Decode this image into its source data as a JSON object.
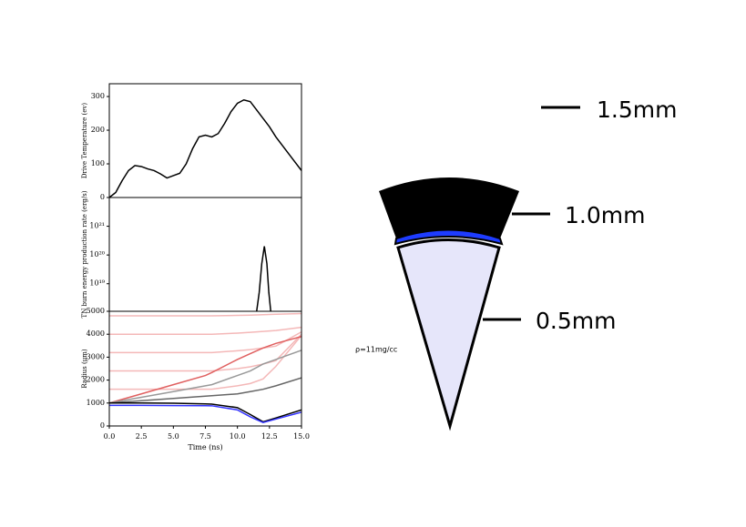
{
  "chart_data": [
    {
      "type": "line",
      "ylabel": "Drive Temperature (ev)",
      "xlim": [
        0,
        15
      ],
      "ylim": [
        0,
        338
      ],
      "yticks": [
        0,
        100,
        200,
        300
      ],
      "x": [
        0,
        0.5,
        1,
        1.5,
        2,
        2.5,
        3,
        3.5,
        4,
        4.5,
        5,
        5.5,
        6,
        6.5,
        7,
        7.5,
        8,
        8.5,
        9,
        9.5,
        10,
        10.5,
        11,
        11.5,
        12,
        12.5,
        13,
        13.5,
        14,
        14.5,
        15
      ],
      "series": [
        {
          "color": "#000000",
          "values": [
            0,
            15,
            50,
            80,
            95,
            92,
            85,
            80,
            70,
            58,
            65,
            72,
            100,
            145,
            180,
            185,
            180,
            190,
            220,
            255,
            280,
            290,
            285,
            260,
            235,
            210,
            180,
            155,
            130,
            105,
            80
          ]
        }
      ]
    },
    {
      "type": "line",
      "ylabel": "TN burn energy production rate (erg/s)",
      "log": true,
      "xlim": [
        0,
        15
      ],
      "ylim": [
        1.1e+18,
        1e+22
      ],
      "yticks": [
        {
          "value": 1e+19,
          "label": "10¹⁹"
        },
        {
          "value": 1e+20,
          "label": "10²⁰"
        },
        {
          "value": 1e+21,
          "label": "10²¹"
        }
      ],
      "x": [
        11.5,
        11.7,
        11.9,
        12.1,
        12.3,
        12.45,
        12.6
      ],
      "series": [
        {
          "color": "#000000",
          "values": [
            1.1e+18,
            5e+18,
            5e+19,
            2e+20,
            5e+19,
            5e+18,
            1.1e+18
          ]
        }
      ]
    },
    {
      "type": "line",
      "ylabel": "Radius (μm)",
      "xlabel": "Time (ns)",
      "xlim": [
        0,
        15
      ],
      "ylim": [
        0,
        5000
      ],
      "yticks": [
        0,
        1000,
        2000,
        3000,
        4000,
        5000
      ],
      "xticks": [
        {
          "value": 0,
          "label": "0.0"
        },
        {
          "value": 2.5,
          "label": "2.5"
        },
        {
          "value": 5,
          "label": "5.0"
        },
        {
          "value": 7.5,
          "label": "7.5"
        },
        {
          "value": 10,
          "label": "10.0"
        },
        {
          "value": 12.5,
          "label": "12.5"
        },
        {
          "value": 15,
          "label": "15.0"
        }
      ],
      "x": [
        0,
        2.5,
        5,
        7.5,
        8,
        10,
        11,
        12,
        13,
        15
      ],
      "series": [
        {
          "color": "#f4b8b8",
          "values": [
            4800,
            4800,
            4800,
            4800,
            4800,
            4820,
            4830,
            4850,
            4870,
            4900
          ]
        },
        {
          "color": "#f4b8b8",
          "values": [
            4000,
            4000,
            4000,
            4000,
            4000,
            4050,
            4080,
            4120,
            4160,
            4300
          ]
        },
        {
          "color": "#f4b8b8",
          "values": [
            3200,
            3200,
            3200,
            3200,
            3200,
            3280,
            3330,
            3400,
            3480,
            4100
          ]
        },
        {
          "color": "#f4b8b8",
          "values": [
            2400,
            2400,
            2400,
            2400,
            2400,
            2500,
            2580,
            2700,
            2850,
            4000
          ]
        },
        {
          "color": "#f4b8b8",
          "values": [
            1600,
            1600,
            1600,
            1600,
            1600,
            1750,
            1850,
            2050,
            2600,
            3950
          ]
        },
        {
          "color": "#e06060",
          "values": [
            1000,
            1400,
            1800,
            2200,
            2330,
            2900,
            3150,
            3400,
            3600,
            3900
          ]
        },
        {
          "color": "#999999",
          "values": [
            1000,
            1250,
            1500,
            1750,
            1800,
            2200,
            2400,
            2700,
            2900,
            3300
          ]
        },
        {
          "color": "#666666",
          "values": [
            1000,
            1100,
            1200,
            1300,
            1320,
            1400,
            1500,
            1600,
            1750,
            2100
          ]
        },
        {
          "color": "#000000",
          "values": [
            1000,
            1000,
            990,
            960,
            950,
            800,
            500,
            180,
            350,
            700
          ]
        },
        {
          "color": "#3333ff",
          "values": [
            900,
            900,
            890,
            885,
            880,
            700,
            400,
            150,
            300,
            600
          ]
        }
      ]
    }
  ],
  "diagram": {
    "labels": [
      "1.5mm",
      "1.0mm",
      "0.5mm",
      "ρ=11mg/cc"
    ]
  }
}
